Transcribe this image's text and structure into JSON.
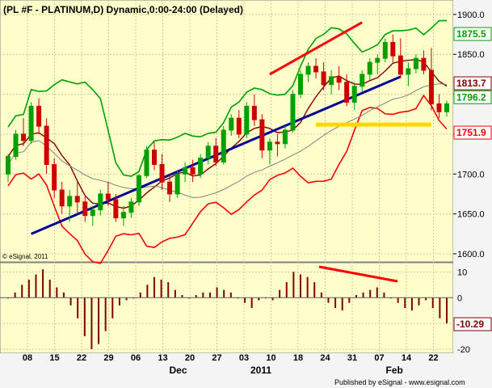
{
  "chart_data": [
    {
      "type": "candlestick",
      "title": "(PL #F - PLATINUM,D) Dynamic,0:00-24:00 (Delayed)",
      "ylim": [
        1600,
        1910
      ],
      "y_ticks": [
        "1900.0",
        "1850.0",
        "1800.0",
        "1750.0",
        "1700.0",
        "1650.0",
        "1600.0"
      ],
      "price_labels": [
        {
          "text": "1875.5",
          "value": 1875.5,
          "color": "#00a000"
        },
        {
          "text": "1813.7",
          "value": 1813.7,
          "color": "#800000"
        },
        {
          "text": "1796.2",
          "value": 1796.2,
          "color": "#00a000"
        },
        {
          "text": "1751.9",
          "value": 1751.9,
          "color": "#ff0000"
        }
      ],
      "series": [
        {
          "name": "price",
          "color_up": "#00a000",
          "color_down": "#cc0000",
          "ohlc": [
            [
              1700,
              1725,
              1690,
              1722
            ],
            [
              1722,
              1755,
              1718,
              1750
            ],
            [
              1750,
              1770,
              1735,
              1742
            ],
            [
              1742,
              1790,
              1738,
              1785
            ],
            [
              1785,
              1795,
              1750,
              1760
            ],
            [
              1760,
              1770,
              1700,
              1712
            ],
            [
              1712,
              1720,
              1670,
              1680
            ],
            [
              1680,
              1690,
              1650,
              1660
            ],
            [
              1660,
              1680,
              1640,
              1672
            ],
            [
              1672,
              1690,
              1650,
              1665
            ],
            [
              1665,
              1672,
              1640,
              1648
            ],
            [
              1648,
              1660,
              1635,
              1655
            ],
            [
              1655,
              1680,
              1648,
              1675
            ],
            [
              1675,
              1690,
              1660,
              1668
            ],
            [
              1668,
              1675,
              1640,
              1645
            ],
            [
              1645,
              1660,
              1635,
              1652
            ],
            [
              1652,
              1670,
              1645,
              1665
            ],
            [
              1665,
              1700,
              1660,
              1698
            ],
            [
              1698,
              1735,
              1695,
              1730
            ],
            [
              1730,
              1740,
              1705,
              1712
            ],
            [
              1712,
              1725,
              1680,
              1690
            ],
            [
              1690,
              1700,
              1665,
              1675
            ],
            [
              1675,
              1705,
              1670,
              1700
            ],
            [
              1700,
              1715,
              1690,
              1708
            ],
            [
              1708,
              1718,
              1690,
              1700
            ],
            [
              1700,
              1725,
              1695,
              1720
            ],
            [
              1720,
              1740,
              1712,
              1735
            ],
            [
              1735,
              1745,
              1710,
              1715
            ],
            [
              1715,
              1760,
              1712,
              1755
            ],
            [
              1755,
              1775,
              1748,
              1770
            ],
            [
              1770,
              1780,
              1745,
              1750
            ],
            [
              1750,
              1790,
              1745,
              1785
            ],
            [
              1785,
              1800,
              1760,
              1768
            ],
            [
              1768,
              1775,
              1720,
              1730
            ],
            [
              1730,
              1745,
              1712,
              1740
            ],
            [
              1740,
              1750,
              1722,
              1738
            ],
            [
              1738,
              1760,
              1732,
              1755
            ],
            [
              1755,
              1805,
              1752,
              1800
            ],
            [
              1800,
              1830,
              1795,
              1825
            ],
            [
              1825,
              1840,
              1815,
              1835
            ],
            [
              1835,
              1845,
              1820,
              1828
            ],
            [
              1828,
              1840,
              1805,
              1812
            ],
            [
              1812,
              1830,
              1800,
              1822
            ],
            [
              1822,
              1835,
              1805,
              1815
            ],
            [
              1815,
              1825,
              1785,
              1790
            ],
            [
              1790,
              1815,
              1780,
              1810
            ],
            [
              1810,
              1830,
              1802,
              1825
            ],
            [
              1825,
              1845,
              1818,
              1840
            ],
            [
              1840,
              1850,
              1825,
              1845
            ],
            [
              1845,
              1870,
              1840,
              1865
            ],
            [
              1865,
              1875,
              1840,
              1848
            ],
            [
              1848,
              1870,
              1820,
              1825
            ],
            [
              1825,
              1840,
              1810,
              1832
            ],
            [
              1832,
              1850,
              1826,
              1845
            ],
            [
              1845,
              1855,
              1825,
              1830
            ],
            [
              1830,
              1858,
              1780,
              1788
            ],
            [
              1788,
              1800,
              1770,
              1778
            ],
            [
              1778,
              1792,
              1772,
              1788
            ]
          ]
        },
        {
          "name": "upper-band",
          "color": "#00a000"
        },
        {
          "name": "lower-band",
          "color": "#ff0000"
        },
        {
          "name": "moving-average",
          "color": "#800000"
        },
        {
          "name": "moving-average-long",
          "color": "#808080"
        },
        {
          "name": "trendline",
          "color": "#000099",
          "points": [
            [
              3,
              1625
            ],
            [
              51,
              1822
            ]
          ]
        },
        {
          "name": "resistance-line",
          "color": "#ff0000",
          "points": [
            [
              34,
              1825
            ],
            [
              46,
              1890
            ]
          ]
        },
        {
          "name": "support-line",
          "color": "#ffd700",
          "points": [
            [
              40,
              1762
            ],
            [
              55,
              1762
            ]
          ]
        }
      ]
    },
    {
      "type": "bar",
      "title": "oscillator",
      "ylim": [
        -20,
        12
      ],
      "y_ticks": [
        "10",
        "0",
        "-10",
        "-20"
      ],
      "current_value": "-10.29",
      "color": "#800000",
      "values": [
        0,
        2,
        5,
        7,
        9,
        11,
        7,
        4,
        2,
        -3,
        -8,
        -15,
        -20,
        -18,
        -13,
        -8,
        -3,
        -1,
        0,
        2,
        5,
        8,
        7,
        6,
        3,
        1,
        0,
        1,
        2,
        2,
        4,
        3,
        2,
        0,
        -2,
        -4,
        -1,
        0,
        -1,
        3,
        6,
        10,
        9,
        8,
        6,
        2,
        -2,
        -4,
        -5,
        -2,
        1,
        2,
        3,
        4,
        2,
        0,
        -2,
        -4,
        -5,
        -3,
        -1,
        -4,
        -8,
        -10
      ]
    }
  ],
  "x_ticks": [
    "08",
    "15",
    "22",
    "29",
    "06",
    "13",
    "20",
    "27",
    "03",
    "10",
    "18",
    "24",
    "31",
    "07",
    "14",
    "22"
  ],
  "month_labels": [
    {
      "text": "Dec",
      "index": 5
    },
    {
      "text": "2011",
      "index": 8
    },
    {
      "text": "Feb",
      "index": 13
    }
  ],
  "copyright": "© eSignal, 2011",
  "footer": "Published by eSignal - www.esignal.com"
}
